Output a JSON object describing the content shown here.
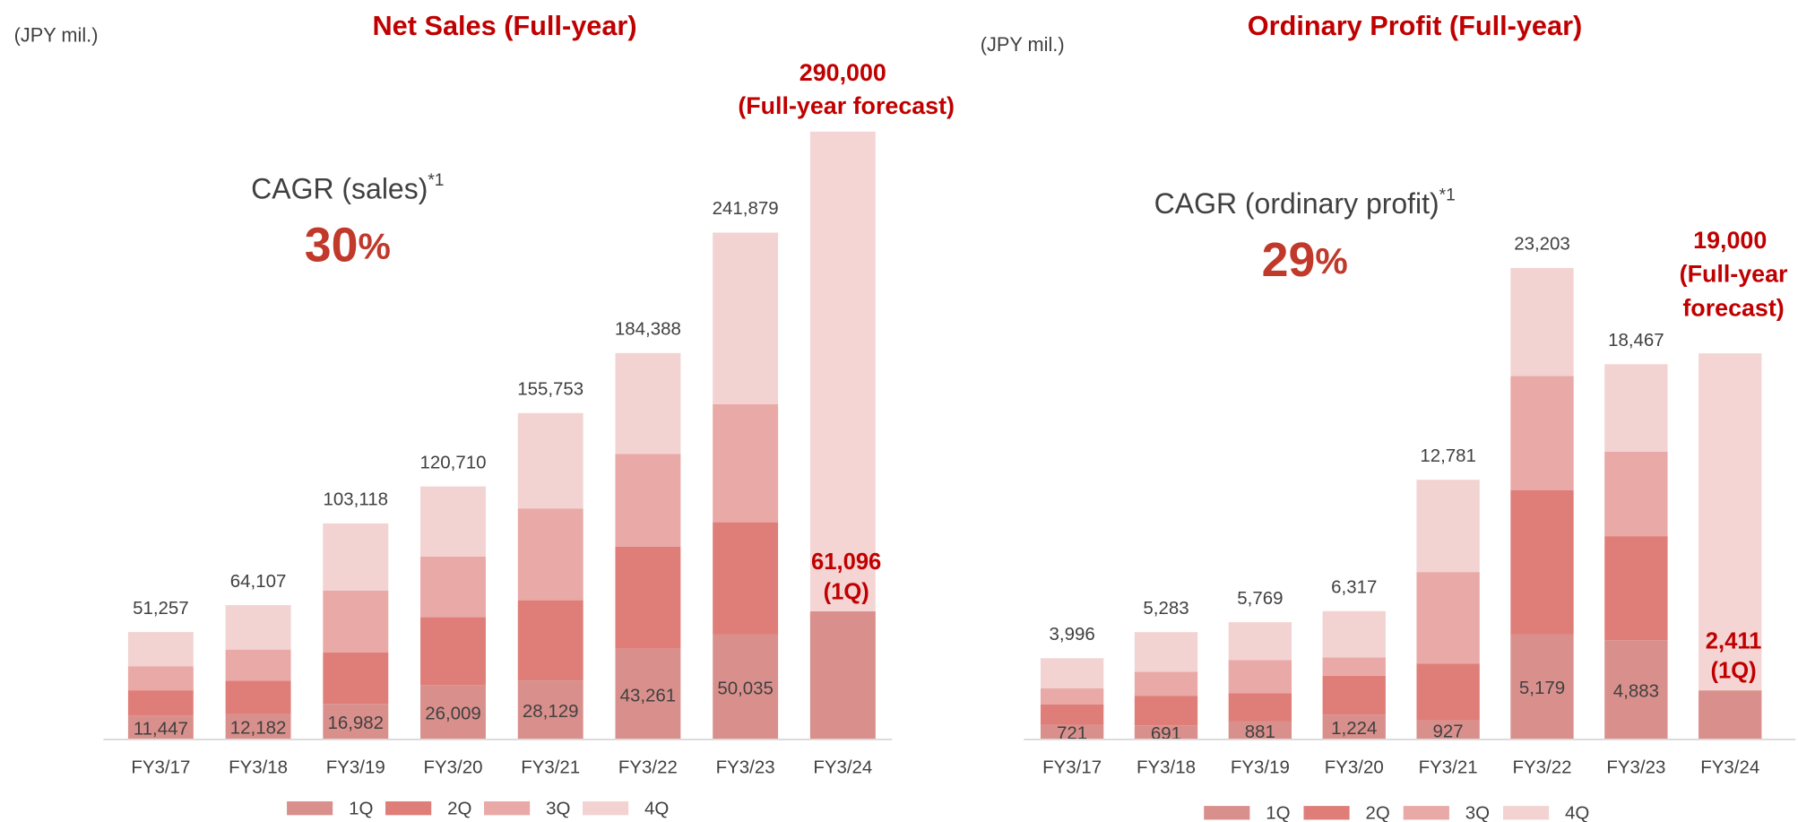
{
  "chart_data": [
    {
      "type": "bar",
      "stacked": true,
      "title": "Net Sales (Full-year)",
      "unit_label": "(JPY mil.)",
      "cagr": {
        "label": "CAGR (sales)",
        "note": "*1",
        "value": 30,
        "unit": "%"
      },
      "categories": [
        "FY3/17",
        "FY3/18",
        "FY3/19",
        "FY3/20",
        "FY3/21",
        "FY3/22",
        "FY3/23",
        "FY3/24"
      ],
      "series": [
        {
          "name": "1Q",
          "color": "#d9908c",
          "values": [
            11447,
            12182,
            16982,
            26009,
            28129,
            43261,
            50035,
            61096
          ],
          "value_labels": [
            "11,447",
            "12,182",
            "16,982",
            "26,009",
            "28,129",
            "43,261",
            "50,035",
            "61,096"
          ]
        },
        {
          "name": "2Q",
          "color": "#df7e78",
          "values": [
            12000,
            15900,
            24600,
            32300,
            38300,
            48700,
            53600,
            null
          ]
        },
        {
          "name": "3Q",
          "color": "#e8a9a7",
          "values": [
            11500,
            14800,
            29500,
            29000,
            43800,
            44300,
            56300,
            null
          ]
        },
        {
          "name": "4Q",
          "color": "#f2d3d2",
          "values": [
            16300,
            21200,
            32000,
            33400,
            45500,
            48100,
            81900,
            null
          ]
        }
      ],
      "totals": [
        51257,
        64107,
        103118,
        120710,
        155753,
        184388,
        241879,
        null
      ],
      "totals_labels": [
        "51,257",
        "64,107",
        "103,118",
        "120,710",
        "155,753",
        "184,388",
        "241,879",
        null
      ],
      "forecast": [
        null,
        null,
        null,
        null,
        null,
        null,
        null,
        290000
      ],
      "forecast_labels": [
        null,
        null,
        null,
        null,
        null,
        null,
        null,
        "290,000"
      ],
      "forecast_color": "#f4d5d4",
      "forecast_note": [
        "(Full-year forecast)"
      ],
      "current_note": "(1Q)",
      "ylim": [
        0,
        320000
      ]
    },
    {
      "type": "bar",
      "stacked": true,
      "title": "Ordinary Profit (Full-year)",
      "unit_label": "(JPY mil.)",
      "cagr": {
        "label": "CAGR (ordinary profit)",
        "note": "*1",
        "value": 29,
        "unit": "%"
      },
      "categories": [
        "FY3/17",
        "FY3/18",
        "FY3/19",
        "FY3/20",
        "FY3/21",
        "FY3/22",
        "FY3/23",
        "FY3/24"
      ],
      "series": [
        {
          "name": "1Q",
          "color": "#d9908c",
          "values": [
            721,
            691,
            881,
            1224,
            927,
            5179,
            4883,
            2411
          ],
          "value_labels": [
            "721",
            "691",
            "881",
            "1,224",
            "927",
            "5,179",
            "4,883",
            "2,411"
          ]
        },
        {
          "name": "2Q",
          "color": "#df7e78",
          "values": [
            1010,
            1460,
            1400,
            1910,
            2810,
            7080,
            5120,
            null
          ]
        },
        {
          "name": "3Q",
          "color": "#e8a9a7",
          "values": [
            790,
            1180,
            1630,
            900,
            4500,
            5620,
            4160,
            null
          ]
        },
        {
          "name": "4Q",
          "color": "#f2d3d2",
          "values": [
            1475,
            1950,
            1860,
            2280,
            4540,
            5320,
            4300,
            null
          ]
        }
      ],
      "totals": [
        3996,
        5283,
        5769,
        6317,
        12781,
        23203,
        18467,
        null
      ],
      "totals_labels": [
        "3,996",
        "5,283",
        "5,769",
        "6,317",
        "12,781",
        "23,203",
        "18,467",
        null
      ],
      "forecast": [
        null,
        null,
        null,
        null,
        null,
        null,
        null,
        19000
      ],
      "forecast_labels": [
        null,
        null,
        null,
        null,
        null,
        null,
        null,
        "19,000"
      ],
      "forecast_color": "#f4d5d4",
      "forecast_note": [
        "(Full-year",
        "forecast)"
      ],
      "current_note": "(1Q)",
      "ylim": [
        0,
        33000
      ]
    }
  ]
}
